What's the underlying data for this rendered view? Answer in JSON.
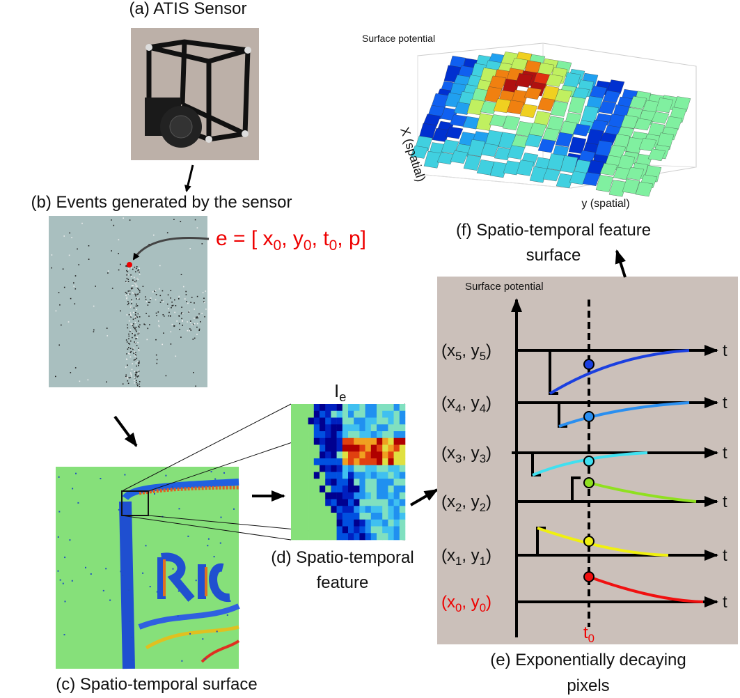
{
  "panel_a": {
    "caption": "(a) ATIS Sensor"
  },
  "panel_b": {
    "caption": "(b) Events generated by the sensor",
    "event": [
      "e = [ x",
      "0",
      ", y",
      "0",
      ", t",
      "0",
      ", p]"
    ]
  },
  "panel_c": {
    "caption": "(c) Spatio-temporal surface"
  },
  "panel_d": {
    "symbol": [
      "I",
      "e"
    ],
    "caption": [
      "(d) Spatio-temporal",
      "feature"
    ]
  },
  "panel_e": {
    "axis_title": "Surface potential",
    "rows": [
      {
        "label": [
          "(x",
          "5",
          ", y",
          "5",
          ")"
        ],
        "axis_end": "t"
      },
      {
        "label": [
          "(x",
          "4",
          ", y",
          "4",
          ")"
        ],
        "axis_end": "t"
      },
      {
        "label": [
          "(x",
          "3",
          ", y",
          "3",
          ")"
        ],
        "axis_end": "t"
      },
      {
        "label": [
          "(x",
          "2",
          ", y",
          "2",
          ")"
        ],
        "axis_end": "t"
      },
      {
        "label": [
          "(x",
          "1",
          ", y",
          "1",
          ")"
        ],
        "axis_end": "t"
      },
      {
        "label": [
          "(x",
          "0",
          ", y",
          "0",
          ")"
        ],
        "axis_end": "t"
      }
    ],
    "time_marker": [
      "t",
      "0"
    ],
    "caption": [
      "(e) Exponentially decaying",
      "pixels"
    ]
  },
  "panel_f": {
    "z_label": "Surface potential",
    "x_label": "X (spatial)",
    "y_label": "y (spatial)",
    "caption": [
      "(f) Spatio-temporal feature",
      "surface"
    ]
  }
}
